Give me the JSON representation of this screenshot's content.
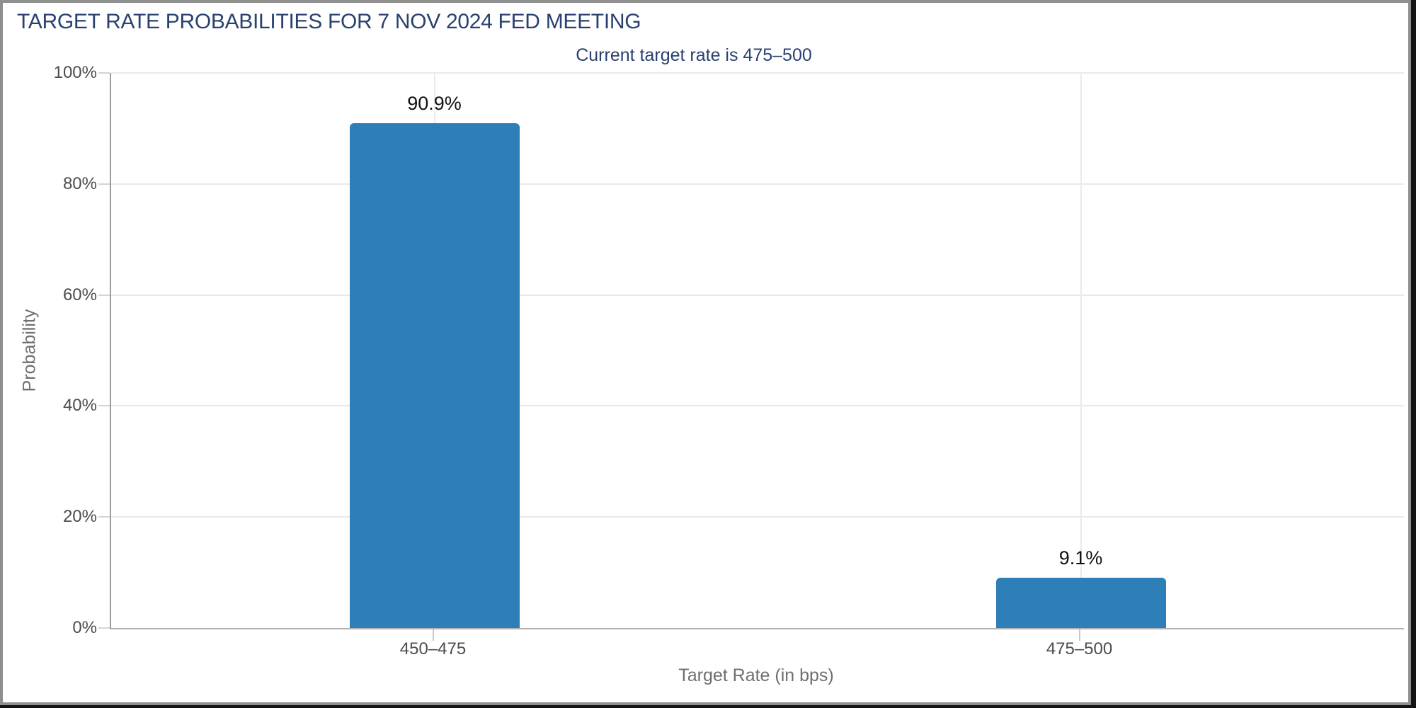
{
  "window": {
    "border_color_outer": "#141414",
    "border_color_inner": "#8f8f8f",
    "background": "#ffffff"
  },
  "chart_data": {
    "type": "bar",
    "title": "TARGET RATE PROBABILITIES FOR 7 NOV 2024 FED MEETING",
    "subtitle": "Current target rate is 475–500",
    "categories": [
      "450–475",
      "475–500"
    ],
    "values": [
      90.9,
      9.1
    ],
    "value_labels": [
      "90.9%",
      "9.1%"
    ],
    "xlabel": "Target Rate (in bps)",
    "ylabel": "Probability",
    "ylim": [
      0,
      100
    ],
    "yticks": [
      0,
      20,
      40,
      60,
      80,
      100
    ],
    "ytick_labels": [
      "0%",
      "20%",
      "40%",
      "60%",
      "80%",
      "100%"
    ],
    "grid": true,
    "legend": "none",
    "colors": {
      "bar": "#2e7eb8",
      "title": "#2a4170",
      "subtitle": "#2a4170",
      "tick_text": "#4d4d4d",
      "axis_title_text": "#6f6f6f",
      "value_label_text": "#111111",
      "gridline": "#e9e9e9"
    }
  }
}
